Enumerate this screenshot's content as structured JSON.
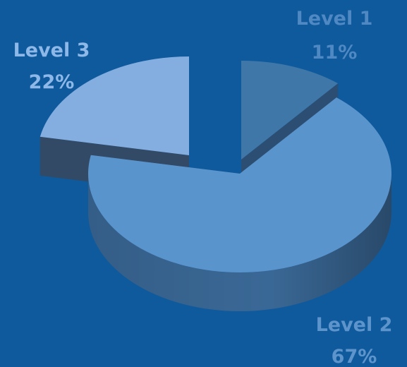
{
  "chart_data": {
    "type": "pie",
    "style": "3d-exploded",
    "background": "#0f5a9c",
    "slices": [
      {
        "name": "Level 1",
        "value": 11,
        "label": "11%",
        "top_color": "#3f77a9",
        "side_color": "#2c4e72",
        "label_color": "#4f88c2"
      },
      {
        "name": "Level 2",
        "value": 67,
        "label": "67%",
        "top_color": "#5a94cc",
        "side_color": "#3a6896",
        "label_color": "#5d94cb"
      },
      {
        "name": "Level 3",
        "value": 22,
        "label": "22%",
        "top_color": "#84ade0",
        "side_color": "#324a66",
        "label_color": "#8db8e8"
      }
    ]
  }
}
